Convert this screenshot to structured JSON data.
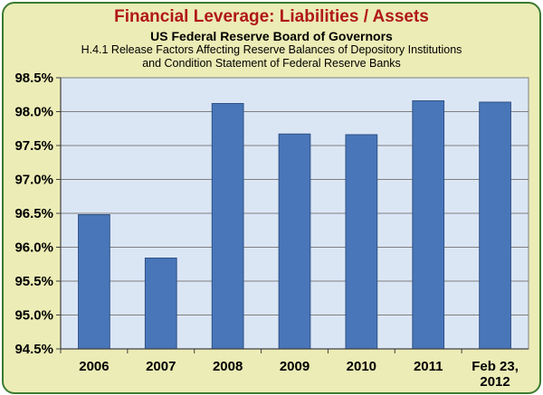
{
  "chart_data": {
    "type": "bar",
    "title": "Financial Leverage: Liabilities / Assets",
    "subtitle": "US Federal Reserve Board of Governors",
    "description_lines": [
      "H.4.1 Release Factors Affecting Reserve Balances of Depository Institutions",
      "and Condition Statement of Federal Reserve Banks"
    ],
    "categories": [
      [
        "2006"
      ],
      [
        "2007"
      ],
      [
        "2008"
      ],
      [
        "2009"
      ],
      [
        "2010"
      ],
      [
        "2011"
      ],
      [
        "Feb 23,",
        "2012"
      ]
    ],
    "values": [
      96.48,
      95.84,
      98.12,
      97.67,
      97.66,
      98.16,
      98.14
    ],
    "ylim": [
      94.5,
      98.5
    ],
    "yticks": [
      94.5,
      95.0,
      95.5,
      96.0,
      96.5,
      97.0,
      97.5,
      98.0,
      98.5
    ],
    "ytick_labels": [
      "94.5%",
      "95.0%",
      "95.5%",
      "96.0%",
      "96.5%",
      "97.0%",
      "97.5%",
      "98.0%",
      "98.5%"
    ],
    "xlabel": "",
    "ylabel": "",
    "grid": "horizontal",
    "legend": "none"
  },
  "colors": {
    "background": "#ececb6",
    "border": "#3c7a32",
    "plot_area": "#dbe6f5",
    "bar_fill": "#4876b8",
    "bar_stroke": "#2e5286",
    "title": "#b01818"
  }
}
